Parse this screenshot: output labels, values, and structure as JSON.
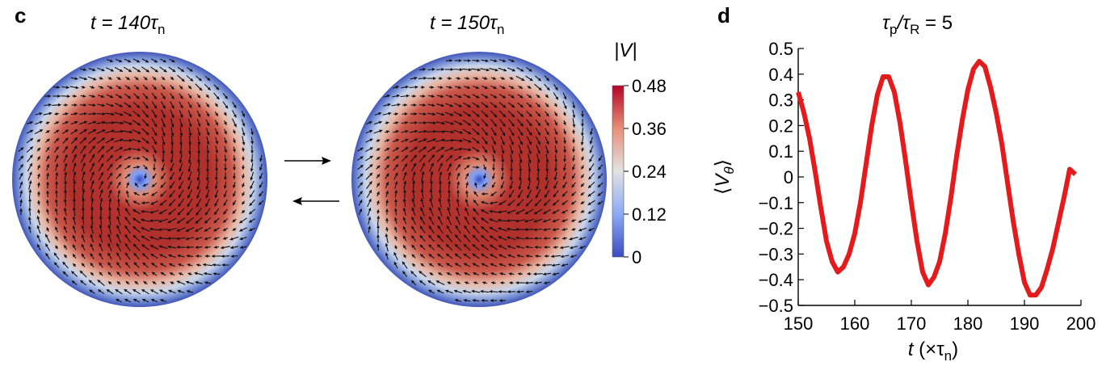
{
  "panel_c": {
    "letter": "c",
    "left_label": {
      "prefix": "t = 140",
      "tau": "τ",
      "sub": "n"
    },
    "right_label": {
      "prefix": "t = 150",
      "tau": "τ",
      "sub": "n"
    },
    "arrow_forward": "→",
    "arrow_back": "←"
  },
  "colorbar": {
    "title": "|V|",
    "ticks": [
      "0.48",
      "0.36",
      "0.24",
      "0.12",
      "0"
    ],
    "min": 0,
    "max": 0.48,
    "colors": {
      "low": "#3b4cc0",
      "mid": "#dddddd",
      "high": "#b40426"
    }
  },
  "chart_data": {
    "type": "line",
    "panel_letter": "d",
    "title": {
      "main": "τ",
      "sub1": "p",
      "slash": "/τ",
      "sub2": "R",
      "tail": " = 5"
    },
    "xlabel": {
      "italic": "t",
      "text": " (×τ",
      "sub": "n",
      "close": ")"
    },
    "ylabel": {
      "open": "⟨",
      "italic": "V",
      "sub": "θ",
      "close": "⟩"
    },
    "xlim": [
      150,
      200
    ],
    "ylim": [
      -0.5,
      0.5
    ],
    "xticks": [
      "150",
      "160",
      "170",
      "180",
      "190",
      "200"
    ],
    "yticks": [
      "0.5",
      "0.4",
      "0.3",
      "0.2",
      "0.1",
      "0",
      "−0.1",
      "−0.2",
      "−0.3",
      "−0.4",
      "−0.5"
    ],
    "series": [
      {
        "color": "#e41a1c",
        "x": [
          150,
          151,
          152,
          153,
          154,
          155,
          156,
          157,
          158,
          159,
          160,
          161,
          162,
          163,
          164,
          165,
          166,
          167,
          168,
          169,
          170,
          171,
          172,
          173,
          174,
          175,
          176,
          177,
          178,
          179,
          180,
          181,
          182,
          183,
          184,
          185,
          186,
          187,
          188,
          189,
          190,
          191,
          192,
          193,
          194,
          195,
          196,
          197,
          198,
          199
        ],
        "y": [
          0.33,
          0.25,
          0.15,
          0.02,
          -0.12,
          -0.25,
          -0.33,
          -0.37,
          -0.35,
          -0.3,
          -0.22,
          -0.1,
          0.05,
          0.2,
          0.32,
          0.39,
          0.39,
          0.33,
          0.21,
          0.06,
          -0.1,
          -0.25,
          -0.37,
          -0.42,
          -0.39,
          -0.33,
          -0.22,
          -0.08,
          0.08,
          0.22,
          0.34,
          0.42,
          0.45,
          0.43,
          0.35,
          0.25,
          0.13,
          -0.02,
          -0.17,
          -0.3,
          -0.41,
          -0.46,
          -0.46,
          -0.43,
          -0.36,
          -0.28,
          -0.18,
          -0.08,
          0.03,
          0.01
        ]
      }
    ]
  }
}
